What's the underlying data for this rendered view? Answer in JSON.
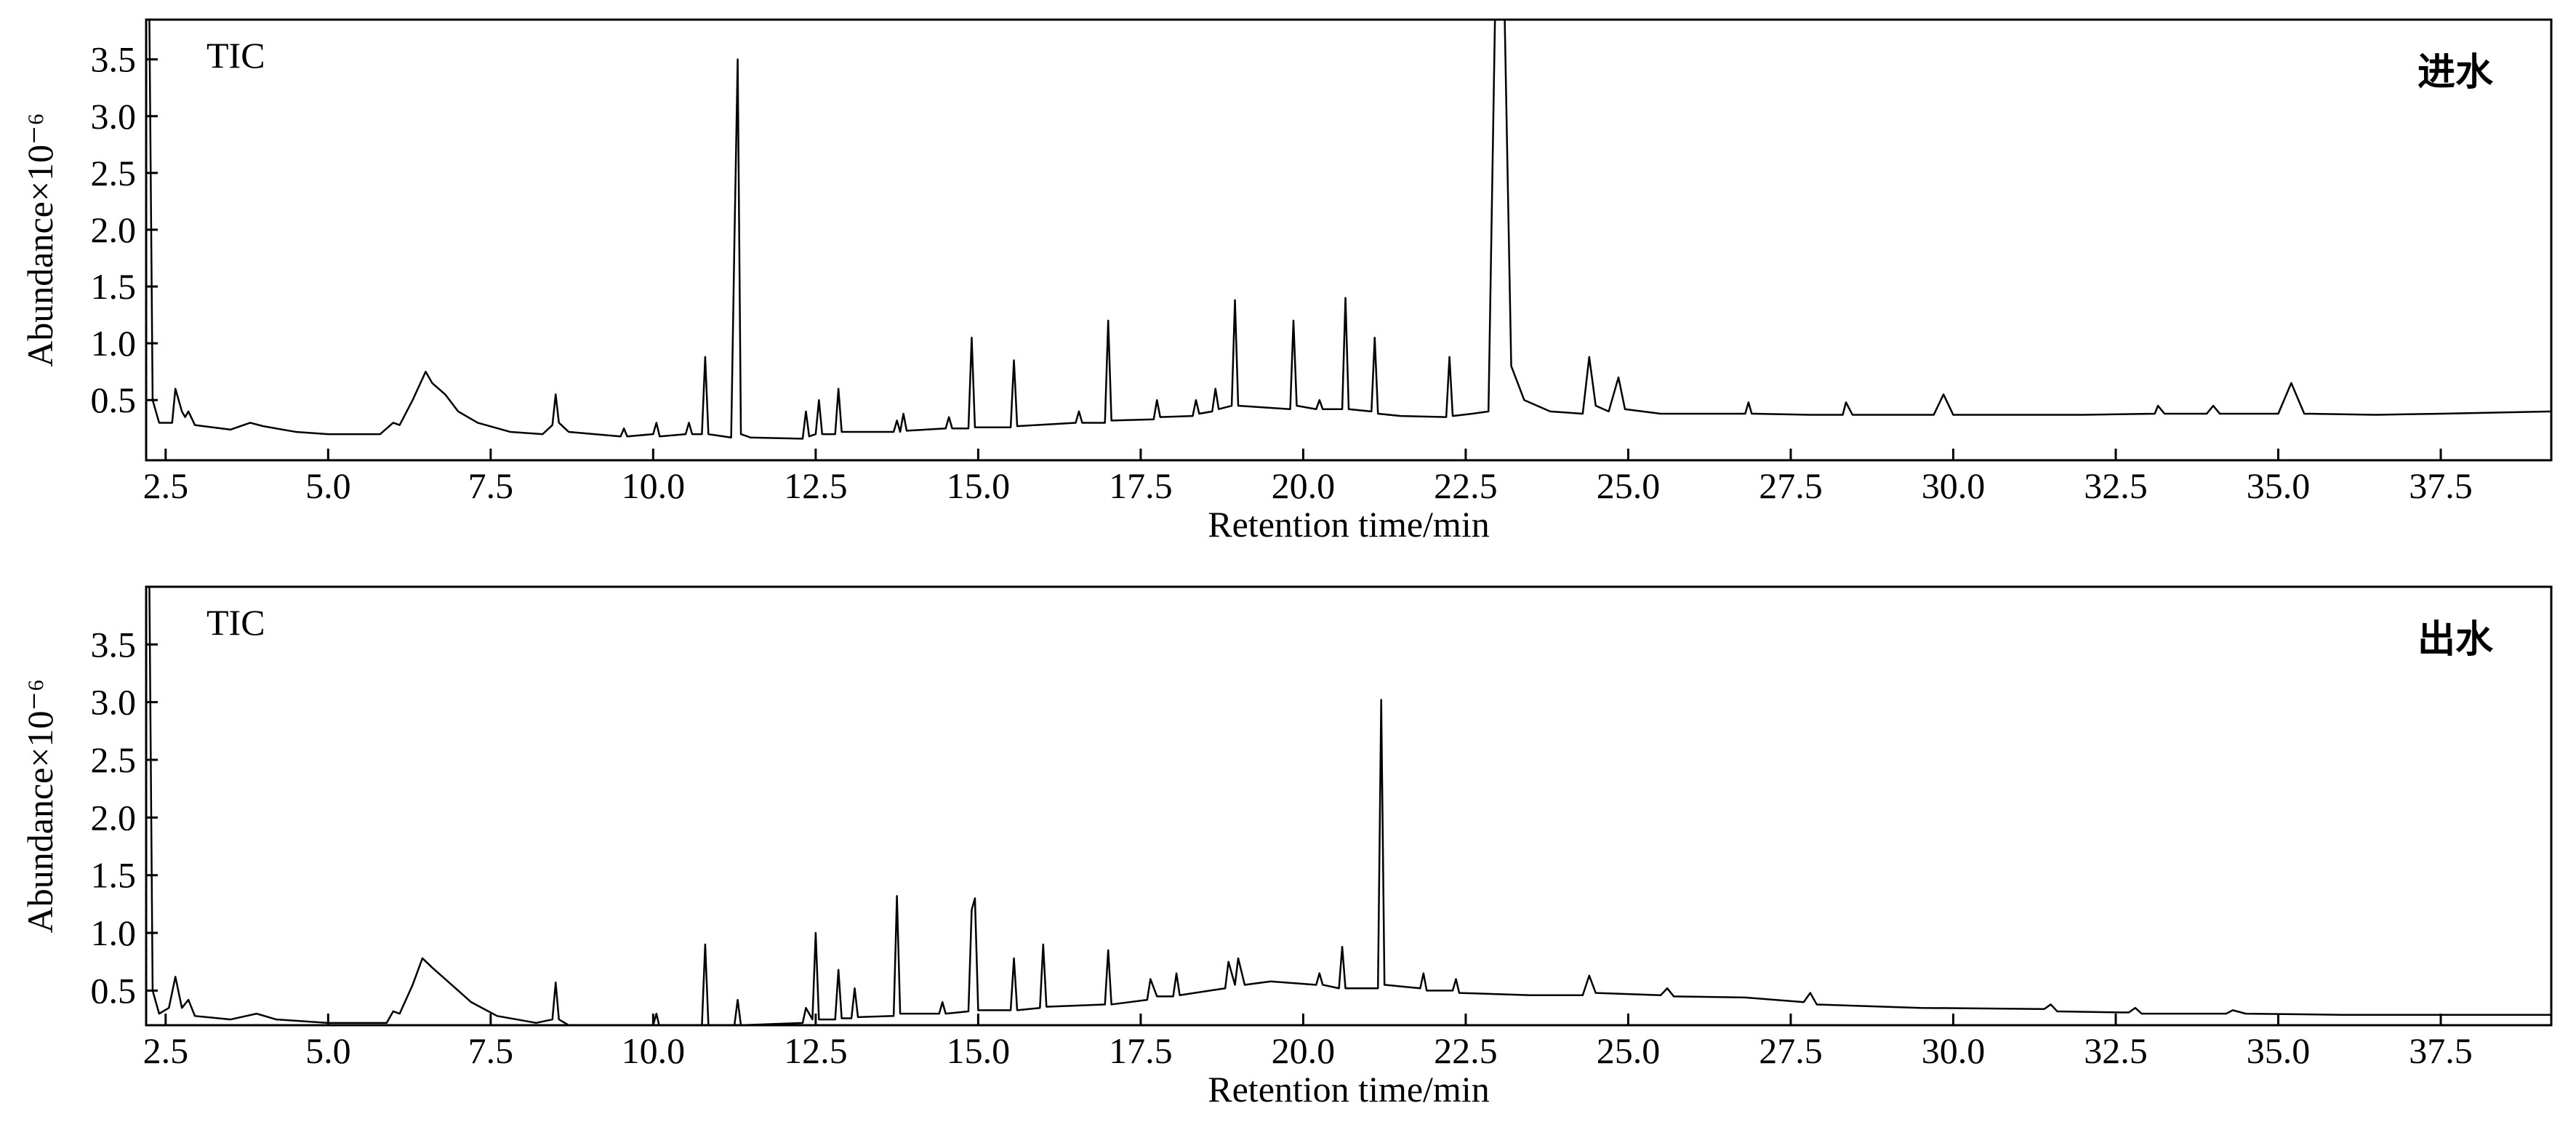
{
  "chart_data": [
    {
      "type": "line",
      "annotation": "TIC",
      "label": "进水",
      "ylabel": "Abundance×10⁻⁶",
      "xlabel": "Retention time/min",
      "color": "#000000",
      "xlim": [
        2.2,
        39.2
      ],
      "ylim": [
        -0.03,
        3.85
      ],
      "xticks": [
        2.5,
        {
          "value": 5,
          "label": "5.0"
        },
        7.5,
        {
          "value": 10,
          "label": "10.0"
        },
        12.5,
        {
          "value": 15,
          "label": "15.0"
        },
        17.5,
        {
          "value": 20,
          "label": "20.0"
        },
        22.5,
        {
          "value": 25,
          "label": "25.0"
        },
        27.5,
        {
          "value": 30,
          "label": "30.0"
        },
        32.5,
        {
          "value": 35,
          "label": "35.0"
        },
        37.5
      ],
      "yticks": [
        0.5,
        {
          "value": 1,
          "label": "1.0"
        },
        1.5,
        {
          "value": 2,
          "label": "2.0"
        },
        2.5,
        {
          "value": 3,
          "label": "3.0"
        },
        3.5
      ],
      "x": [
        2.25,
        2.3,
        2.4,
        2.6,
        2.65,
        2.75,
        2.8,
        2.85,
        2.95,
        3.5,
        3.8,
        4.0,
        4.5,
        5.0,
        5.8,
        6.0,
        6.1,
        6.3,
        6.5,
        6.6,
        6.8,
        7.0,
        7.3,
        7.8,
        8.3,
        8.45,
        8.5,
        8.55,
        8.7,
        9.5,
        9.55,
        9.6,
        10.0,
        10.05,
        10.1,
        10.5,
        10.55,
        10.6,
        10.75,
        10.8,
        10.85,
        11.2,
        11.25,
        11.3,
        11.35,
        11.5,
        12.3,
        12.35,
        12.4,
        12.5,
        12.55,
        12.6,
        12.8,
        12.85,
        12.9,
        13.7,
        13.75,
        13.8,
        13.85,
        13.9,
        14.5,
        14.55,
        14.6,
        14.85,
        14.9,
        14.95,
        15.5,
        15.55,
        15.6,
        16.5,
        16.55,
        16.6,
        16.95,
        17.0,
        17.05,
        17.7,
        17.75,
        17.8,
        18.3,
        18.35,
        18.4,
        18.6,
        18.65,
        18.7,
        18.9,
        18.95,
        19.0,
        19.8,
        19.85,
        19.9,
        20.2,
        20.25,
        20.3,
        20.6,
        20.65,
        20.7,
        21.05,
        21.1,
        21.15,
        21.5,
        22.2,
        22.25,
        22.3,
        22.6,
        22.85,
        22.95,
        23.1,
        23.2,
        23.4,
        23.8,
        24.3,
        24.4,
        24.5,
        24.7,
        24.85,
        24.95,
        25.5,
        26.8,
        26.85,
        26.9,
        27.8,
        28.3,
        28.35,
        28.45,
        29.7,
        29.85,
        30.0,
        32.0,
        33.1,
        33.15,
        33.25,
        33.9,
        34.0,
        34.1,
        35.0,
        35.2,
        35.4,
        36.5,
        37.5,
        39.2
      ],
      "values": [
        3.85,
        0.5,
        0.3,
        0.3,
        0.6,
        0.4,
        0.35,
        0.4,
        0.28,
        0.24,
        0.3,
        0.27,
        0.22,
        0.2,
        0.2,
        0.3,
        0.28,
        0.5,
        0.75,
        0.65,
        0.55,
        0.4,
        0.3,
        0.22,
        0.2,
        0.28,
        0.55,
        0.3,
        0.22,
        0.18,
        0.25,
        0.18,
        0.2,
        0.3,
        0.18,
        0.2,
        0.3,
        0.2,
        0.2,
        0.88,
        0.2,
        0.17,
        1.9,
        3.5,
        0.2,
        0.17,
        0.16,
        0.4,
        0.18,
        0.2,
        0.5,
        0.2,
        0.2,
        0.6,
        0.22,
        0.22,
        0.32,
        0.22,
        0.38,
        0.23,
        0.25,
        0.35,
        0.25,
        0.25,
        1.05,
        0.26,
        0.26,
        0.85,
        0.27,
        0.3,
        0.4,
        0.3,
        0.3,
        1.2,
        0.32,
        0.33,
        0.5,
        0.35,
        0.36,
        0.5,
        0.38,
        0.4,
        0.6,
        0.42,
        0.45,
        1.38,
        0.45,
        0.42,
        1.2,
        0.45,
        0.42,
        0.5,
        0.42,
        0.42,
        1.4,
        0.42,
        0.4,
        1.05,
        0.38,
        0.36,
        0.35,
        0.88,
        0.36,
        0.38,
        0.4,
        3.85,
        3.85,
        0.8,
        0.5,
        0.4,
        0.38,
        0.88,
        0.45,
        0.4,
        0.7,
        0.42,
        0.38,
        0.38,
        0.48,
        0.38,
        0.37,
        0.37,
        0.48,
        0.37,
        0.37,
        0.55,
        0.37,
        0.37,
        0.38,
        0.45,
        0.38,
        0.38,
        0.45,
        0.38,
        0.38,
        0.65,
        0.38,
        0.37,
        0.38,
        0.4
      ]
    },
    {
      "type": "line",
      "annotation": "TIC",
      "label": "出水",
      "ylabel": "Abundance×10⁻⁶",
      "xlabel": "Retention time/min",
      "color": "#000000",
      "xlim": [
        2.2,
        39.2
      ],
      "ylim": [
        0.2,
        4.0
      ],
      "xticks": [
        2.5,
        {
          "value": 5,
          "label": "5.0"
        },
        7.5,
        {
          "value": 10,
          "label": "10.0"
        },
        12.5,
        {
          "value": 15,
          "label": "15.0"
        },
        17.5,
        {
          "value": 20,
          "label": "20.0"
        },
        22.5,
        {
          "value": 25,
          "label": "25.0"
        },
        27.5,
        {
          "value": 30,
          "label": "30.0"
        },
        32.5,
        {
          "value": 35,
          "label": "35.0"
        },
        37.5
      ],
      "yticks": [
        0.5,
        {
          "value": 1,
          "label": "1.0"
        },
        1.5,
        {
          "value": 2,
          "label": "2.0"
        },
        2.5,
        {
          "value": 3,
          "label": "3.0"
        },
        3.5
      ],
      "x": [
        2.25,
        2.3,
        2.4,
        2.55,
        2.65,
        2.75,
        2.85,
        2.95,
        3.5,
        3.9,
        4.2,
        5.0,
        5.9,
        6.0,
        6.1,
        6.3,
        6.45,
        6.6,
        6.9,
        7.2,
        7.6,
        8.2,
        8.45,
        8.5,
        8.55,
        8.7,
        9.5,
        10.0,
        10.05,
        10.1,
        10.75,
        10.8,
        10.85,
        11.25,
        11.3,
        11.35,
        12.3,
        12.35,
        12.45,
        12.5,
        12.55,
        12.8,
        12.85,
        12.9,
        13.05,
        13.1,
        13.15,
        13.7,
        13.75,
        13.8,
        14.4,
        14.45,
        14.5,
        14.85,
        14.9,
        14.95,
        15.0,
        15.5,
        15.55,
        15.6,
        15.95,
        16.0,
        16.05,
        16.95,
        17.0,
        17.05,
        17.6,
        17.65,
        17.75,
        18.0,
        18.05,
        18.1,
        18.8,
        18.85,
        18.95,
        19.0,
        19.1,
        19.5,
        20.2,
        20.25,
        20.3,
        20.55,
        20.6,
        20.65,
        21.15,
        21.2,
        21.25,
        21.8,
        21.85,
        21.9,
        22.3,
        22.35,
        22.4,
        23.5,
        24.3,
        24.4,
        24.5,
        25.5,
        25.6,
        25.7,
        26.8,
        27.7,
        27.8,
        27.9,
        29.5,
        31.4,
        31.5,
        31.6,
        32.7,
        32.8,
        32.9,
        34.2,
        34.3,
        34.5,
        36.0,
        39.2
      ],
      "values": [
        4.0,
        0.5,
        0.3,
        0.35,
        0.62,
        0.35,
        0.42,
        0.28,
        0.25,
        0.3,
        0.25,
        0.22,
        0.22,
        0.32,
        0.3,
        0.55,
        0.78,
        0.7,
        0.55,
        0.4,
        0.28,
        0.22,
        0.25,
        0.57,
        0.25,
        0.2,
        0.18,
        0.2,
        0.3,
        0.18,
        0.2,
        0.9,
        0.2,
        0.2,
        0.42,
        0.2,
        0.22,
        0.35,
        0.25,
        1.0,
        0.25,
        0.25,
        0.68,
        0.26,
        0.26,
        0.52,
        0.27,
        0.28,
        1.32,
        0.3,
        0.3,
        0.4,
        0.3,
        0.32,
        1.2,
        1.3,
        0.33,
        0.33,
        0.78,
        0.33,
        0.35,
        0.9,
        0.36,
        0.38,
        0.85,
        0.38,
        0.42,
        0.6,
        0.45,
        0.45,
        0.65,
        0.46,
        0.52,
        0.75,
        0.55,
        0.78,
        0.55,
        0.58,
        0.55,
        0.65,
        0.55,
        0.52,
        0.88,
        0.52,
        0.52,
        3.02,
        0.55,
        0.52,
        0.65,
        0.5,
        0.5,
        0.6,
        0.48,
        0.46,
        0.46,
        0.63,
        0.48,
        0.46,
        0.52,
        0.45,
        0.44,
        0.4,
        0.48,
        0.38,
        0.35,
        0.34,
        0.38,
        0.32,
        0.31,
        0.35,
        0.3,
        0.3,
        0.33,
        0.3,
        0.29,
        0.29
      ]
    }
  ]
}
